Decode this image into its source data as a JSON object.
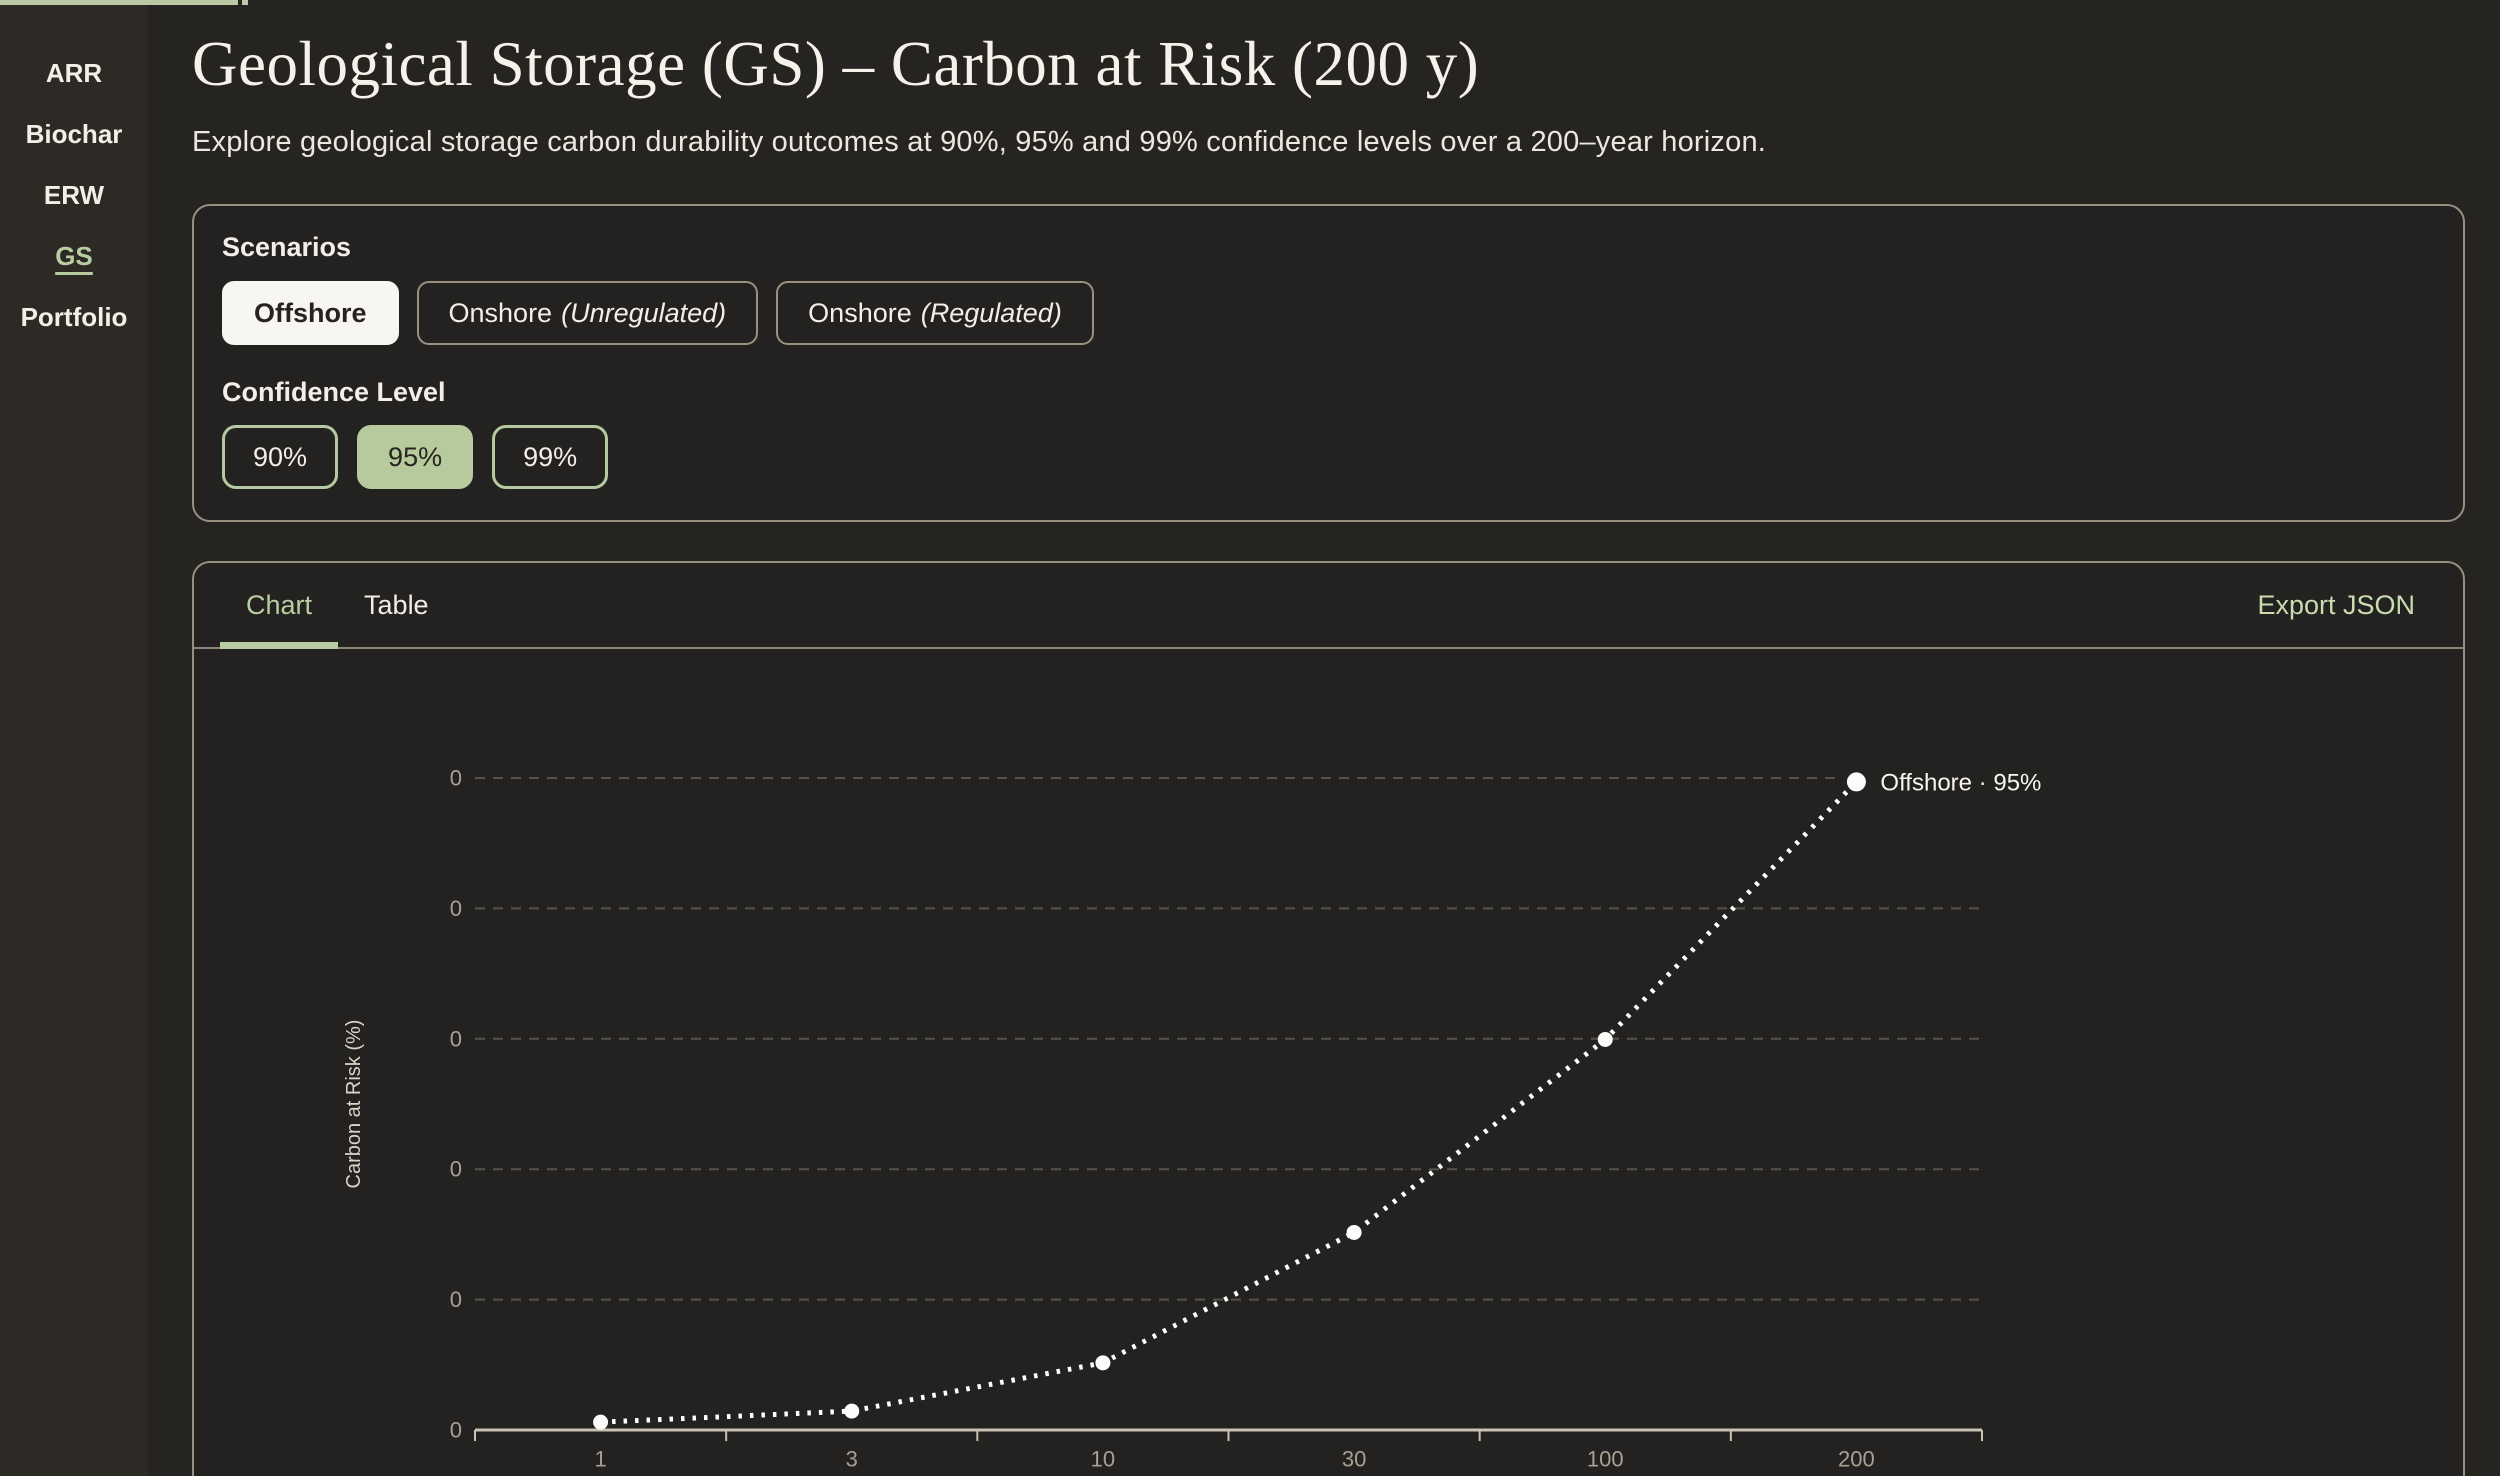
{
  "sidebar": {
    "items": [
      {
        "label": "ARR",
        "active": false
      },
      {
        "label": "Biochar",
        "active": false
      },
      {
        "label": "ERW",
        "active": false
      },
      {
        "label": "GS",
        "active": true
      },
      {
        "label": "Portfolio",
        "active": false
      }
    ]
  },
  "header": {
    "title": "Geological Storage (GS) – Carbon at Risk (200 y)",
    "subtitle": "Explore geological storage carbon durability outcomes at 90%, 95% and 99% confidence levels over a 200–year horizon."
  },
  "controls": {
    "scenarios_label": "Scenarios",
    "scenario_options": [
      {
        "label": "Offshore",
        "suffix": "",
        "active": true
      },
      {
        "label": "Onshore",
        "suffix": "(Unregulated)",
        "active": false
      },
      {
        "label": "Onshore",
        "suffix": "(Regulated)",
        "active": false
      }
    ],
    "confidence_label": "Confidence Level",
    "confidence_options": [
      {
        "label": "90%",
        "active": false
      },
      {
        "label": "95%",
        "active": true
      },
      {
        "label": "99%",
        "active": false
      }
    ]
  },
  "panel": {
    "tabs": [
      {
        "label": "Chart",
        "active": true
      },
      {
        "label": "Table",
        "active": false
      }
    ],
    "export_label": "Export JSON"
  },
  "chart_data": {
    "type": "line",
    "line_style": "dotted",
    "title": "",
    "xlabel": "",
    "ylabel": "Carbon at Risk (%)",
    "categories": [
      "1",
      "3",
      "10",
      "30",
      "100",
      "200"
    ],
    "y_tick_labels": [
      "0",
      "0",
      "0",
      "0",
      "0",
      "0"
    ],
    "grid": "horizontal dashed gridlines at each y tick",
    "legend_position": "inline label at last data point",
    "series": [
      {
        "name": "Offshore · 95%",
        "values_fraction_of_top_gridline": [
          0.012,
          0.029,
          0.103,
          0.303,
          0.599,
          0.994
        ]
      }
    ]
  },
  "colors": {
    "page_bg": "#262420",
    "sidebar_bg": "#2d2a25",
    "accent_green": "#b9cda2",
    "chip_active_bg": "#b6ca9e",
    "active_button_bg": "#f8f6f0",
    "card_border": "#97907e",
    "button_border": "#9a9180",
    "text_light": "#f2efe8",
    "text_dark": "#272420",
    "export_link": "#c8dcb0",
    "axis_line": "#c9c3b4",
    "tick_label": "#a8a093",
    "gridline": "#55524a",
    "series_white": "#ffffff"
  }
}
